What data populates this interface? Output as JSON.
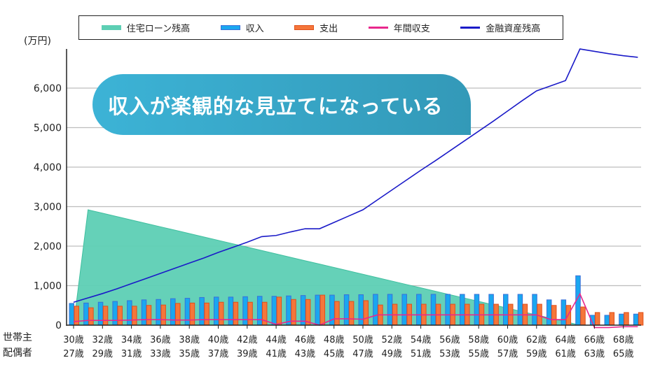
{
  "chart_data": {
    "type": "bar",
    "title": "",
    "ylabel": "(万円)",
    "ylim": [
      0,
      7000
    ],
    "yticks": [
      0,
      1000,
      2000,
      3000,
      4000,
      5000,
      6000
    ],
    "ytick_labels": [
      "0",
      "1,000",
      "2,000",
      "3,000",
      "4,000",
      "5,000",
      "6,000"
    ],
    "grid": true,
    "legend_position": "top",
    "row_labels": [
      "世帯主",
      "配偶者"
    ],
    "x_head_ages": [
      30,
      31,
      32,
      33,
      34,
      35,
      36,
      37,
      38,
      39,
      40,
      41,
      42,
      43,
      44,
      45,
      46,
      47,
      48,
      49,
      50,
      51,
      52,
      53,
      54,
      55,
      56,
      57,
      58,
      59,
      60,
      61,
      62,
      63,
      64,
      65,
      66,
      67,
      68,
      69
    ],
    "x_tick_labels_head": [
      "30歳",
      "32歳",
      "34歳",
      "36歳",
      "38歳",
      "40歳",
      "42歳",
      "44歳",
      "46歳",
      "48歳",
      "50歳",
      "52歳",
      "54歳",
      "56歳",
      "58歳",
      "60歳",
      "62歳",
      "64歳",
      "66歳",
      "68歳"
    ],
    "x_tick_labels_spouse": [
      "27歳",
      "29歳",
      "31歳",
      "33歳",
      "35歳",
      "37歳",
      "39歳",
      "41歳",
      "43歳",
      "45歳",
      "47歳",
      "49歳",
      "51歳",
      "53歳",
      "55歳",
      "57歳",
      "59歳",
      "61歳",
      "63歳",
      "65歳"
    ],
    "series": [
      {
        "name": "住宅ローン残高",
        "kind": "area",
        "color": "#5dcfb4",
        "values": [
          0,
          2920,
          2834,
          2748,
          2662,
          2576,
          2490,
          2405,
          2319,
          2233,
          2147,
          2061,
          1975,
          1889,
          1803,
          1717,
          1631,
          1546,
          1460,
          1374,
          1288,
          1202,
          1116,
          1030,
          944,
          858,
          773,
          687,
          601,
          515,
          429,
          343,
          258,
          172,
          86,
          0,
          0,
          0,
          0,
          0
        ]
      },
      {
        "name": "収入",
        "kind": "bar",
        "color": "#1aa7f0",
        "values": [
          550,
          560,
          580,
          600,
          620,
          640,
          650,
          670,
          680,
          700,
          710,
          710,
          720,
          730,
          730,
          740,
          750,
          760,
          760,
          770,
          770,
          780,
          780,
          780,
          780,
          780,
          780,
          780,
          780,
          780,
          780,
          780,
          780,
          640,
          640,
          1250,
          250,
          250,
          280,
          280
        ]
      },
      {
        "name": "支出",
        "kind": "bar",
        "color": "#f5763a",
        "values": [
          480,
          440,
          480,
          480,
          480,
          500,
          510,
          550,
          560,
          560,
          580,
          580,
          580,
          580,
          710,
          650,
          650,
          760,
          600,
          600,
          620,
          510,
          530,
          530,
          530,
          530,
          530,
          530,
          530,
          530,
          530,
          530,
          530,
          500,
          500,
          460,
          320,
          320,
          320,
          320
        ]
      },
      {
        "name": "年間収支",
        "kind": "line",
        "color": "#e8288c",
        "values": [
          90,
          120,
          120,
          120,
          130,
          140,
          140,
          130,
          130,
          140,
          140,
          140,
          140,
          140,
          20,
          100,
          100,
          0,
          160,
          160,
          150,
          260,
          260,
          260,
          260,
          260,
          260,
          260,
          260,
          260,
          260,
          260,
          260,
          140,
          140,
          790,
          -60,
          -60,
          -40,
          -40
        ]
      },
      {
        "name": "金融資産残高",
        "kind": "line",
        "color": "#1a1ac8",
        "values": [
          580,
          690,
          800,
          920,
          1050,
          1180,
          1310,
          1440,
          1570,
          1700,
          1840,
          1970,
          2100,
          2240,
          2270,
          2360,
          2440,
          2440,
          2600,
          2760,
          2920,
          3170,
          3420,
          3670,
          3920,
          4160,
          4410,
          4660,
          4910,
          5160,
          5420,
          5680,
          5930,
          6060,
          6190,
          6990,
          6930,
          6870,
          6820,
          6780
        ]
      }
    ]
  },
  "callout": {
    "text": "収入が楽観的な見立てになっている"
  }
}
